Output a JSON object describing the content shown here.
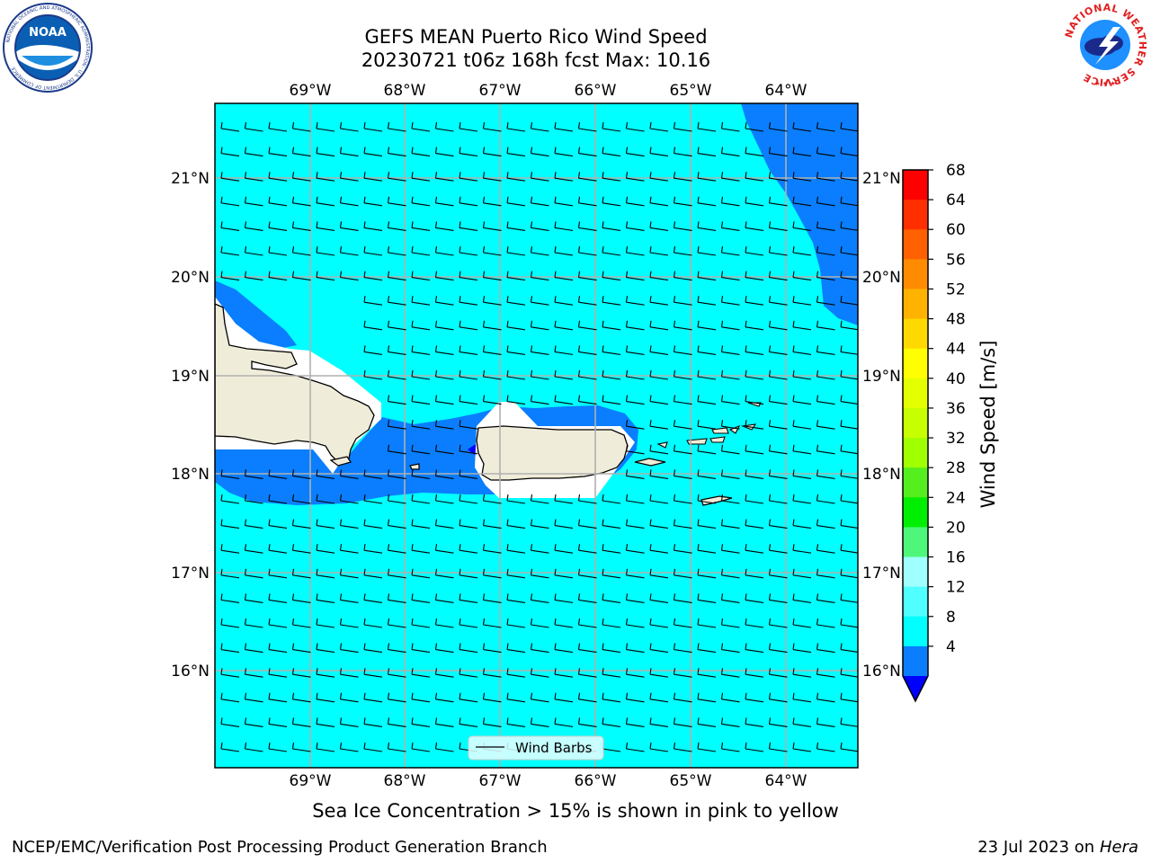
{
  "header": {
    "title_line1": "GEFS MEAN Puerto Rico Wind Speed",
    "title_line2": "20230721 t06z 168h fcst   Max: 10.16"
  },
  "logos": {
    "left": {
      "name": "NOAA",
      "text": "NOAA",
      "ring_text": "NATIONAL OCEANIC AND ATMOSPHERIC ADMINISTRATION · U.S. DEPARTMENT OF COMMERCE"
    },
    "right": {
      "name": "National Weather Service",
      "ring_text": "NATIONAL WEATHER SERVICE"
    }
  },
  "map": {
    "lon_labels": [
      "69°W",
      "68°W",
      "67°W",
      "66°W",
      "65°W",
      "64°W"
    ],
    "lat_labels": [
      "21°N",
      "20°N",
      "19°N",
      "18°N",
      "17°N",
      "16°N"
    ],
    "background_color": "#00ffff",
    "land_color": "#efedd9",
    "low_wind_color": "#0a7efe",
    "legend_label": "Wind Barbs"
  },
  "colorbar": {
    "label": "Wind Speed [m/s]",
    "ticks": [
      "68",
      "64",
      "60",
      "56",
      "52",
      "48",
      "44",
      "40",
      "36",
      "32",
      "28",
      "24",
      "20",
      "16",
      "12",
      "8",
      "4"
    ],
    "colors": [
      "#ff0000",
      "#ff2f00",
      "#ff6000",
      "#ff8c00",
      "#ffb300",
      "#ffd800",
      "#ffff00",
      "#e4ff00",
      "#c8ff00",
      "#a0ff00",
      "#55ee1e",
      "#00ee00",
      "#4ef77a",
      "#a0ffff",
      "#50ffff",
      "#00ffff",
      "#0a7efe"
    ],
    "extend_color": "#0000ff"
  },
  "subtitle": "Sea Ice Concentration > 15% is shown in pink to yellow",
  "footer": {
    "left": "NCEP/EMC/Verification Post Processing Product Generation Branch",
    "right_date": "23 Jul 2023 on ",
    "right_host": "Hera"
  }
}
